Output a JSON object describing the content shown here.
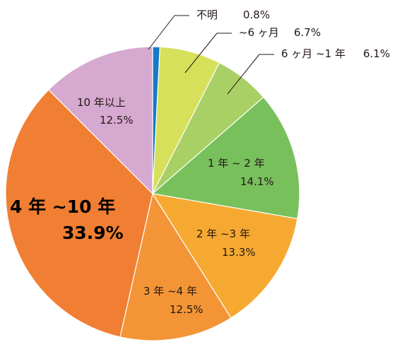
{
  "chart_data": {
    "type": "pie",
    "slices": [
      {
        "label": "不明",
        "value": 0.8,
        "value_text": "0.8%",
        "color": "#1a7ac4"
      },
      {
        "label": "~6 ヶ月",
        "value": 6.7,
        "value_text": "6.7%",
        "color": "#d6e05a"
      },
      {
        "label": "6 ヶ月 ~1 年",
        "value": 6.1,
        "value_text": "6.1%",
        "color": "#a9d064"
      },
      {
        "label": "1 年 ~ 2 年",
        "value": 14.1,
        "value_text": "14.1%",
        "color": "#78c05c"
      },
      {
        "label": "2 年 ~3 年",
        "value": 13.3,
        "value_text": "13.3%",
        "color": "#f6a931"
      },
      {
        "label": "3 年 ~4 年",
        "value": 12.5,
        "value_text": "12.5%",
        "color": "#f39536"
      },
      {
        "label": "4 年 ~10 年",
        "value": 33.9,
        "value_text": "33.9%",
        "color": "#f17f33"
      },
      {
        "label": "10 年以上",
        "value": 12.5,
        "value_text": "12.5%",
        "color": "#d6a9d0"
      }
    ],
    "start": "top",
    "direction": "clockwise"
  }
}
